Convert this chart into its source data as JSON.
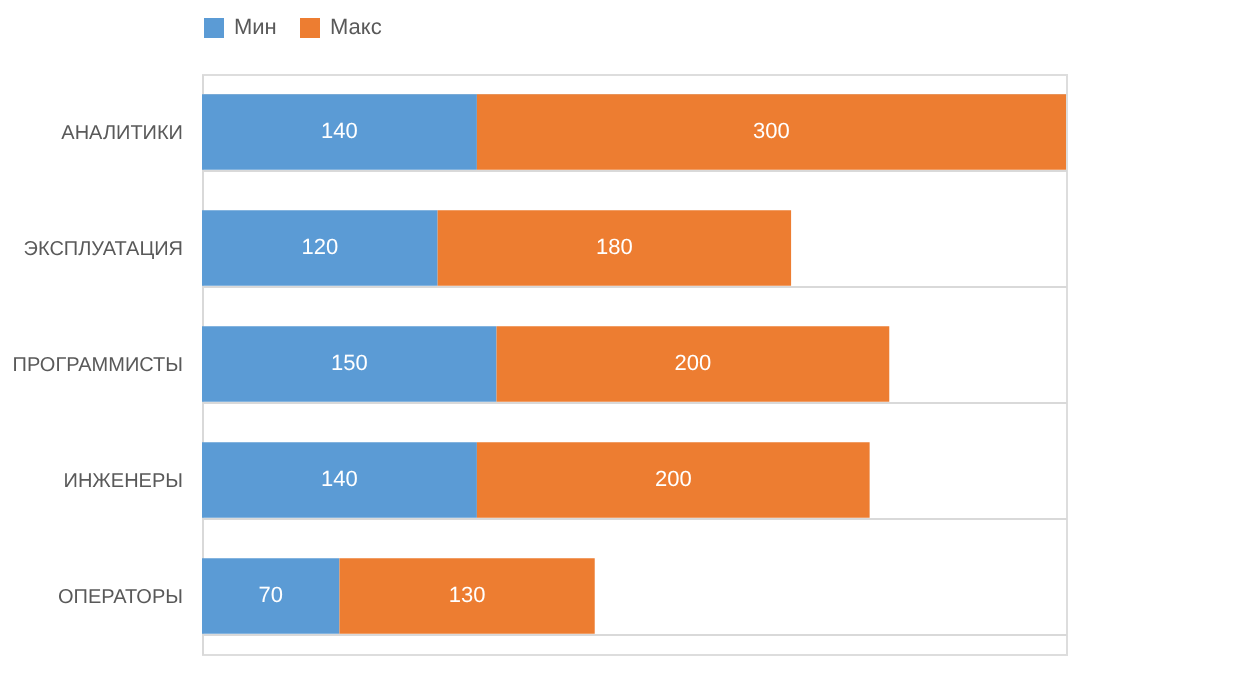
{
  "chart_data": {
    "type": "bar",
    "orientation": "horizontal",
    "stacked": true,
    "data_labels": true,
    "grid": "y",
    "legend": "top",
    "categories": [
      "АНАЛИТИКИ",
      "ЭКСПЛУАТАЦИЯ",
      "ПРОГРАММИСТЫ",
      "ИНЖЕНЕРЫ",
      "ОПЕРАТОРЫ"
    ],
    "series": [
      {
        "name": "Мин",
        "color": "#5b9bd5",
        "values": [
          140,
          120,
          150,
          140,
          70
        ]
      },
      {
        "name": "Макс",
        "color": "#ed7d31",
        "values": [
          300,
          180,
          200,
          200,
          130
        ]
      }
    ]
  }
}
